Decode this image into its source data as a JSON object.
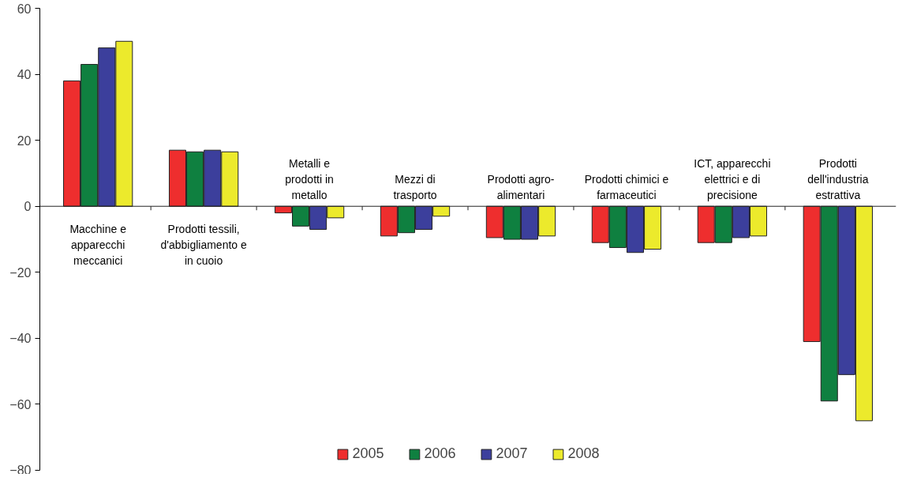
{
  "chart_data": {
    "type": "bar",
    "categories": [
      "Macchine e\napparecchi\nmeccanici",
      "Prodotti tessili,\nd'abbigliamento e\nin cuoio",
      "Metalli e\nprodotti in\nmetallo",
      "Mezzi di\ntrasporto",
      "Prodotti agro-\nalimentari",
      "Prodotti chimici e\nfarmaceutici",
      "ICT, apparecchi\nelettrici e di\nprecisione",
      "Prodotti\ndell'industria\nestrattiva"
    ],
    "series": [
      {
        "name": "2005",
        "color": "#ee2e2e",
        "values": [
          38,
          17,
          -2,
          -9,
          -9.5,
          -11,
          -11,
          -41
        ]
      },
      {
        "name": "2006",
        "color": "#0f8040",
        "values": [
          43,
          16.5,
          -6,
          -8,
          -10,
          -12.5,
          -11,
          -59
        ]
      },
      {
        "name": "2007",
        "color": "#3c3f9c",
        "values": [
          48,
          17,
          -7,
          -7,
          -10,
          -14,
          -9.5,
          -51
        ]
      },
      {
        "name": "2008",
        "color": "#ecea2c",
        "values": [
          50,
          16.5,
          -3.5,
          -3,
          -9,
          -13,
          -9,
          -65
        ]
      }
    ],
    "ylim": [
      -80,
      60
    ],
    "yticks": [
      -80,
      -60,
      -40,
      -20,
      0,
      20,
      40,
      60
    ],
    "grid": false,
    "legend": "bottom"
  }
}
